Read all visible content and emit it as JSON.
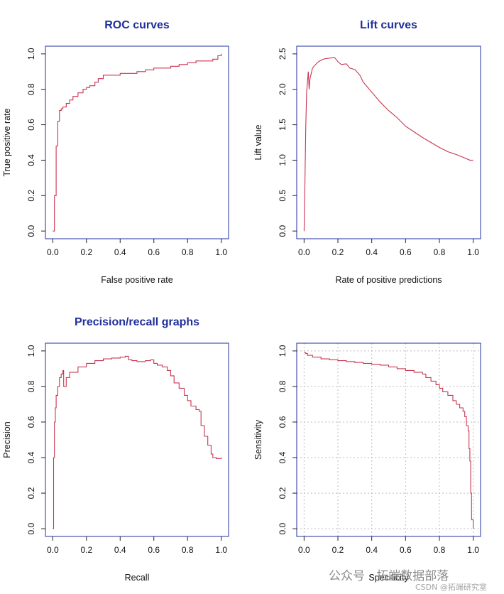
{
  "chart_data": [
    {
      "id": "roc",
      "type": "line",
      "title": "ROC curves",
      "xlabel": "False positive rate",
      "ylabel": "True positive rate",
      "xlim": [
        0,
        1
      ],
      "ylim": [
        0,
        1
      ],
      "xticks": [
        "0.0",
        "0.2",
        "0.4",
        "0.6",
        "0.8",
        "1.0"
      ],
      "yticks": [
        "0.0",
        "0.2",
        "0.4",
        "0.6",
        "0.8",
        "1.0"
      ],
      "grid": false,
      "step": true,
      "color": "#c8354f",
      "x": [
        0,
        0.01,
        0.01,
        0.02,
        0.02,
        0.03,
        0.03,
        0.04,
        0.05,
        0.06,
        0.08,
        0.1,
        0.12,
        0.15,
        0.18,
        0.2,
        0.22,
        0.25,
        0.27,
        0.3,
        0.35,
        0.4,
        0.45,
        0.5,
        0.55,
        0.6,
        0.65,
        0.7,
        0.75,
        0.8,
        0.85,
        0.9,
        0.95,
        0.98,
        1.0
      ],
      "y": [
        0,
        0.02,
        0.2,
        0.45,
        0.48,
        0.58,
        0.62,
        0.68,
        0.69,
        0.7,
        0.72,
        0.74,
        0.76,
        0.78,
        0.8,
        0.81,
        0.82,
        0.84,
        0.86,
        0.88,
        0.88,
        0.89,
        0.89,
        0.9,
        0.91,
        0.92,
        0.92,
        0.93,
        0.94,
        0.95,
        0.96,
        0.96,
        0.97,
        0.99,
        1.0
      ]
    },
    {
      "id": "lift",
      "type": "line",
      "title": "Lift curves",
      "xlabel": "Rate of positive predictions",
      "ylabel": "Lift value",
      "xlim": [
        0,
        1
      ],
      "ylim": [
        0,
        2.5
      ],
      "xticks": [
        "0.0",
        "0.2",
        "0.4",
        "0.6",
        "0.8",
        "1.0"
      ],
      "yticks": [
        "0.0",
        "0.5",
        "1.0",
        "1.5",
        "2.0",
        "2.5"
      ],
      "grid": false,
      "step": false,
      "color": "#c8354f",
      "x": [
        0,
        0.005,
        0.01,
        0.015,
        0.02,
        0.025,
        0.03,
        0.035,
        0.04,
        0.05,
        0.06,
        0.08,
        0.1,
        0.12,
        0.15,
        0.18,
        0.2,
        0.22,
        0.25,
        0.27,
        0.3,
        0.33,
        0.35,
        0.4,
        0.45,
        0.5,
        0.55,
        0.6,
        0.65,
        0.7,
        0.75,
        0.8,
        0.85,
        0.9,
        0.95,
        0.98,
        1.0
      ],
      "y": [
        0,
        0.7,
        1.45,
        1.95,
        2.1,
        2.25,
        2.0,
        2.15,
        2.2,
        2.3,
        2.33,
        2.38,
        2.41,
        2.43,
        2.44,
        2.45,
        2.39,
        2.35,
        2.36,
        2.3,
        2.28,
        2.2,
        2.1,
        1.96,
        1.82,
        1.7,
        1.6,
        1.48,
        1.4,
        1.32,
        1.25,
        1.18,
        1.12,
        1.08,
        1.03,
        1.0,
        1.0
      ]
    },
    {
      "id": "pr",
      "type": "line",
      "title": "Precision/recall graphs",
      "xlabel": "Recall",
      "ylabel": "Precision",
      "xlim": [
        0,
        1
      ],
      "ylim": [
        0,
        1
      ],
      "xticks": [
        "0.0",
        "0.2",
        "0.4",
        "0.6",
        "0.8",
        "1.0"
      ],
      "yticks": [
        "0.0",
        "0.2",
        "0.4",
        "0.6",
        "0.8",
        "1.0"
      ],
      "grid": false,
      "step": true,
      "color": "#c8354f",
      "x": [
        0,
        0.005,
        0.01,
        0.015,
        0.02,
        0.03,
        0.04,
        0.05,
        0.06,
        0.065,
        0.08,
        0.1,
        0.15,
        0.2,
        0.25,
        0.3,
        0.35,
        0.4,
        0.43,
        0.45,
        0.47,
        0.5,
        0.55,
        0.58,
        0.6,
        0.62,
        0.65,
        0.68,
        0.7,
        0.72,
        0.75,
        0.78,
        0.8,
        0.82,
        0.85,
        0.87,
        0.88,
        0.9,
        0.92,
        0.94,
        0.95,
        0.97,
        1.0
      ],
      "y": [
        0,
        0.4,
        0.6,
        0.68,
        0.75,
        0.8,
        0.85,
        0.87,
        0.89,
        0.8,
        0.85,
        0.88,
        0.91,
        0.93,
        0.945,
        0.955,
        0.96,
        0.965,
        0.97,
        0.95,
        0.945,
        0.94,
        0.945,
        0.95,
        0.93,
        0.92,
        0.91,
        0.89,
        0.86,
        0.82,
        0.79,
        0.75,
        0.72,
        0.69,
        0.67,
        0.66,
        0.58,
        0.52,
        0.47,
        0.42,
        0.4,
        0.395,
        0.4
      ]
    },
    {
      "id": "sens",
      "type": "line",
      "title": "",
      "xlabel": "Specificity",
      "ylabel": "Sensitivity",
      "xlim": [
        0,
        1
      ],
      "ylim": [
        0,
        1
      ],
      "xticks": [
        "0.0",
        "0.2",
        "0.4",
        "0.6",
        "0.8",
        "1.0"
      ],
      "yticks": [
        "0.0",
        "0.2",
        "0.4",
        "0.6",
        "0.8",
        "1.0"
      ],
      "grid": true,
      "step": true,
      "color": "#c8354f",
      "x": [
        0,
        0.01,
        0.02,
        0.05,
        0.1,
        0.15,
        0.2,
        0.25,
        0.3,
        0.35,
        0.4,
        0.45,
        0.5,
        0.55,
        0.6,
        0.65,
        0.7,
        0.72,
        0.75,
        0.78,
        0.8,
        0.82,
        0.85,
        0.88,
        0.9,
        0.92,
        0.94,
        0.95,
        0.96,
        0.97,
        0.975,
        0.98,
        0.985,
        0.99,
        1.0
      ],
      "y": [
        0.99,
        0.985,
        0.975,
        0.965,
        0.955,
        0.95,
        0.945,
        0.94,
        0.935,
        0.93,
        0.925,
        0.92,
        0.91,
        0.9,
        0.89,
        0.88,
        0.87,
        0.85,
        0.83,
        0.81,
        0.79,
        0.77,
        0.75,
        0.72,
        0.7,
        0.68,
        0.66,
        0.63,
        0.58,
        0.55,
        0.45,
        0.38,
        0.2,
        0.05,
        0.0
      ]
    }
  ],
  "watermark": {
    "brand": "公众号 · 拓端数据部落",
    "credit": "CSDN @拓端研究室"
  }
}
